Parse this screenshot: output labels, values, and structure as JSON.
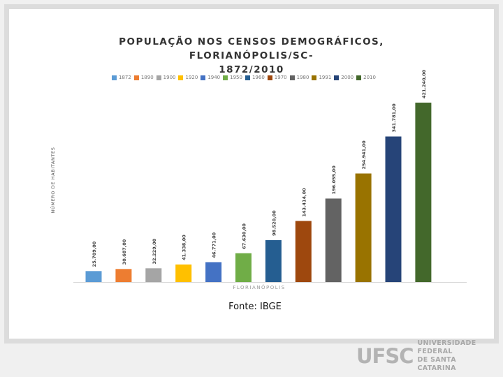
{
  "source_note": "Fonte: IBGE",
  "logo": {
    "mark": "UFSC",
    "line1": "UNIVERSIDADE FEDERAL",
    "line2": "DE SANTA CATARINA"
  },
  "chart_data": {
    "type": "bar",
    "title_line1": "POPULAÇÃO NOS CENSOS DEMOGRÁFICOS, FLORIANÓPOLIS/SC-",
    "title_line2": "1872/2010",
    "xlabel": "FLORIANÓPOLIS",
    "ylabel": "NÚMERO DE HABITANTES",
    "legend_position": "top",
    "grid": false,
    "ylim": [
      0,
      421240
    ],
    "series": [
      {
        "name": "1872",
        "value": 25709,
        "label": "25.709,00",
        "color": "#5b9bd5"
      },
      {
        "name": "1890",
        "value": 30687,
        "label": "30.687,00",
        "color": "#ed7d31"
      },
      {
        "name": "1900",
        "value": 32229,
        "label": "32.229,00",
        "color": "#a5a5a5"
      },
      {
        "name": "1920",
        "value": 41338,
        "label": "41.338,00",
        "color": "#ffc000"
      },
      {
        "name": "1940",
        "value": 46771,
        "label": "46.771,00",
        "color": "#4472c4"
      },
      {
        "name": "1950",
        "value": 67630,
        "label": "67.630,00",
        "color": "#70ad47"
      },
      {
        "name": "1960",
        "value": 98520,
        "label": "98.520,00",
        "color": "#255e91"
      },
      {
        "name": "1970",
        "value": 143414,
        "label": "143.414,00",
        "color": "#9e480e"
      },
      {
        "name": "1980",
        "value": 196055,
        "label": "196.055,00",
        "color": "#636363"
      },
      {
        "name": "1991",
        "value": 254941,
        "label": "254.941,00",
        "color": "#997300"
      },
      {
        "name": "2000",
        "value": 341781,
        "label": "341.781,00",
        "color": "#264478"
      },
      {
        "name": "2010",
        "value": 421240,
        "label": "421.240,00",
        "color": "#43682b"
      }
    ]
  }
}
